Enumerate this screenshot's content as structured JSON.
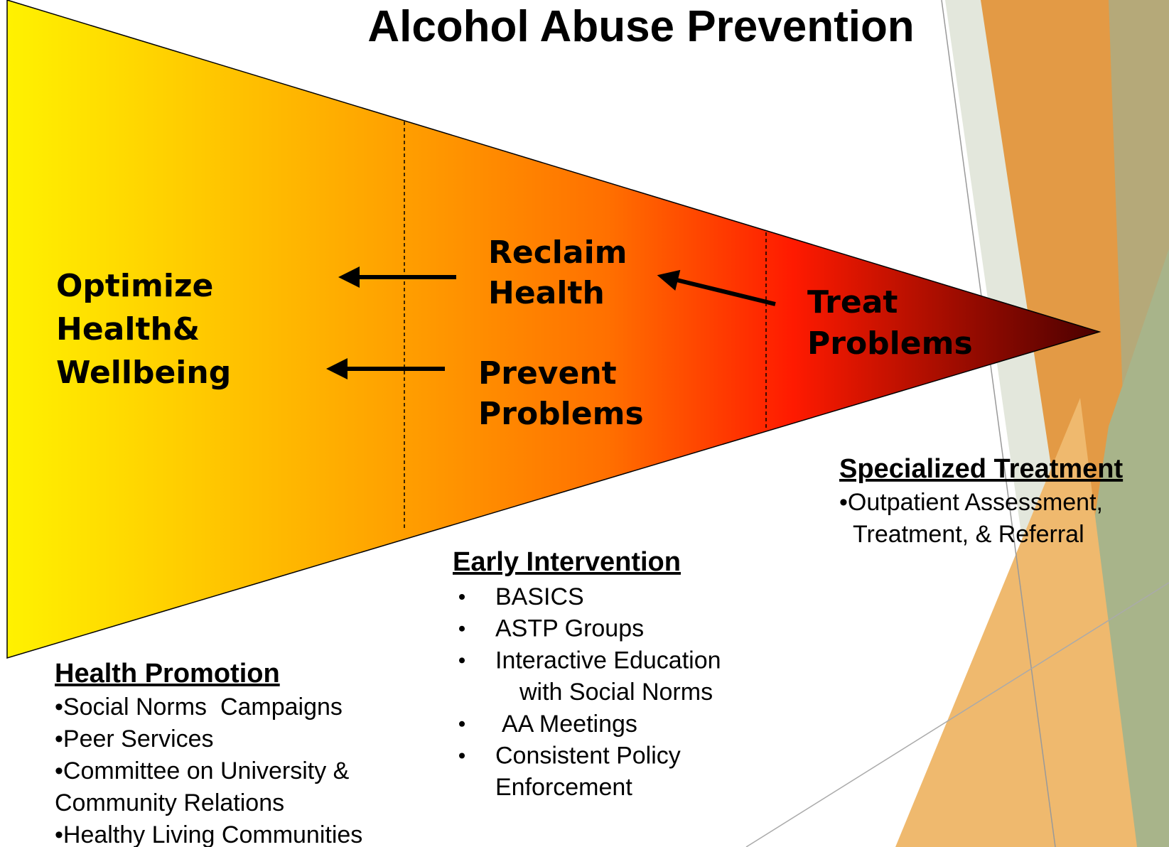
{
  "title": "Alcohol Abuse Prevention",
  "funnel": {
    "left": [
      "Optimize",
      "Health&",
      "Wellbeing"
    ],
    "reclaim": [
      "Reclaim",
      "Health"
    ],
    "prevent": [
      "Prevent",
      "Problems"
    ],
    "treat": [
      "Treat",
      "Problems"
    ]
  },
  "health_promotion": {
    "heading": "Health Promotion",
    "lines": [
      "•Social Norms  Campaigns",
      "•Peer Services",
      "•Committee on University &",
      "Community Relations",
      "•Healthy Living Communities"
    ]
  },
  "early_intervention": {
    "heading": "Early Intervention",
    "items": [
      [
        "BASICS"
      ],
      [
        "ASTP Groups"
      ],
      [
        "Interactive Education",
        "with Social Norms"
      ],
      [
        "AA Meetings"
      ],
      [
        "Consistent Policy",
        "Enforcement"
      ]
    ]
  },
  "specialized_treatment": {
    "heading": "Specialized Treatment",
    "lines": [
      "•Outpatient Assessment,",
      "Treatment, & Referral"
    ]
  }
}
